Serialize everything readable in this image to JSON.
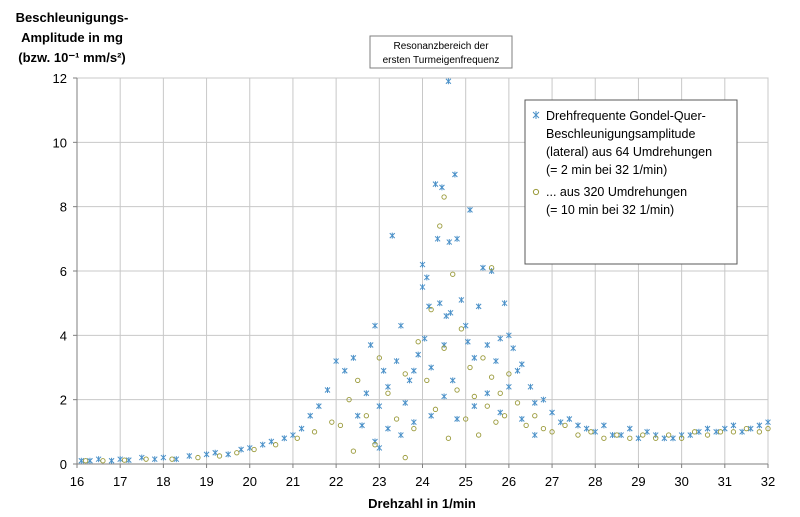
{
  "chart_data": {
    "type": "scatter",
    "ylabel_lines": [
      "Beschleunigungs-",
      "Amplitude in mg",
      "(bzw.  10⁻¹ mm/s²)"
    ],
    "xlabel": "Drehzahl in 1/min",
    "xlim": [
      16,
      32
    ],
    "ylim": [
      0,
      12
    ],
    "x_ticks": [
      "16",
      "17",
      "18",
      "19",
      "20",
      "21",
      "22",
      "23",
      "24",
      "25",
      "26",
      "27",
      "28",
      "29",
      "30",
      "31",
      "32"
    ],
    "y_ticks": [
      "0",
      "2",
      "4",
      "6",
      "8",
      "10",
      "12"
    ],
    "grid": true,
    "annotation_lines": [
      "Resonanzbereich der",
      "ersten Turmeigenfrequenz"
    ],
    "legend_position": "top-right",
    "series": [
      {
        "name": "Drehfrequente Gondel-Quer-Beschleunigungsamplitude (lateral) aus 64 Umdrehungen (= 2 min bei 32 1/min)",
        "name_lines": [
          "Drehfrequente Gondel-Quer-",
          "Beschleunigungsamplitude",
          "(lateral) aus 64 Umdrehungen",
          "(= 2 min bei 32 1/min)"
        ],
        "marker": "asterisk",
        "color": "#4a90c8",
        "points": [
          [
            16.1,
            0.1
          ],
          [
            16.3,
            0.1
          ],
          [
            16.5,
            0.15
          ],
          [
            16.8,
            0.1
          ],
          [
            17.0,
            0.15
          ],
          [
            17.2,
            0.12
          ],
          [
            17.5,
            0.2
          ],
          [
            17.8,
            0.15
          ],
          [
            18.0,
            0.2
          ],
          [
            18.3,
            0.15
          ],
          [
            18.6,
            0.25
          ],
          [
            19.0,
            0.3
          ],
          [
            19.2,
            0.35
          ],
          [
            19.5,
            0.3
          ],
          [
            19.8,
            0.45
          ],
          [
            20.0,
            0.5
          ],
          [
            20.3,
            0.6
          ],
          [
            20.5,
            0.7
          ],
          [
            20.8,
            0.8
          ],
          [
            21.0,
            0.9
          ],
          [
            21.2,
            1.1
          ],
          [
            21.4,
            1.5
          ],
          [
            21.6,
            1.8
          ],
          [
            21.8,
            2.3
          ],
          [
            22.0,
            3.2
          ],
          [
            22.2,
            2.9
          ],
          [
            22.4,
            3.3
          ],
          [
            22.5,
            1.5
          ],
          [
            22.7,
            2.2
          ],
          [
            22.8,
            3.7
          ],
          [
            22.9,
            4.3
          ],
          [
            23.0,
            1.8
          ],
          [
            23.1,
            2.9
          ],
          [
            23.2,
            2.4
          ],
          [
            23.3,
            7.1
          ],
          [
            23.4,
            3.2
          ],
          [
            23.5,
            4.3
          ],
          [
            23.6,
            1.9
          ],
          [
            23.7,
            2.6
          ],
          [
            23.8,
            2.9
          ],
          [
            23.9,
            3.4
          ],
          [
            24.0,
            6.2
          ],
          [
            24.0,
            5.5
          ],
          [
            24.05,
            3.9
          ],
          [
            24.1,
            5.8
          ],
          [
            24.15,
            4.9
          ],
          [
            24.2,
            3.0
          ],
          [
            24.3,
            8.7
          ],
          [
            24.35,
            7.0
          ],
          [
            24.4,
            5.0
          ],
          [
            24.45,
            8.6
          ],
          [
            24.5,
            3.7
          ],
          [
            24.55,
            4.6
          ],
          [
            24.6,
            11.9
          ],
          [
            24.62,
            6.9
          ],
          [
            24.65,
            4.7
          ],
          [
            24.7,
            2.6
          ],
          [
            24.75,
            9.0
          ],
          [
            24.8,
            7.0
          ],
          [
            24.9,
            5.1
          ],
          [
            25.0,
            4.3
          ],
          [
            25.05,
            3.8
          ],
          [
            25.1,
            7.9
          ],
          [
            25.2,
            3.3
          ],
          [
            25.3,
            4.9
          ],
          [
            25.4,
            6.1
          ],
          [
            25.5,
            3.7
          ],
          [
            25.6,
            6.0
          ],
          [
            25.7,
            3.2
          ],
          [
            25.8,
            3.9
          ],
          [
            25.9,
            5.0
          ],
          [
            26.0,
            4.0
          ],
          [
            26.1,
            3.6
          ],
          [
            26.2,
            2.9
          ],
          [
            26.3,
            3.1
          ],
          [
            26.5,
            2.4
          ],
          [
            26.6,
            1.9
          ],
          [
            26.8,
            2.0
          ],
          [
            27.0,
            1.6
          ],
          [
            27.2,
            1.3
          ],
          [
            27.4,
            1.4
          ],
          [
            27.6,
            1.2
          ],
          [
            27.8,
            1.1
          ],
          [
            28.0,
            1.0
          ],
          [
            28.2,
            1.2
          ],
          [
            28.4,
            0.9
          ],
          [
            28.6,
            0.9
          ],
          [
            28.8,
            1.1
          ],
          [
            29.0,
            0.8
          ],
          [
            29.2,
            1.0
          ],
          [
            29.4,
            0.9
          ],
          [
            29.6,
            0.8
          ],
          [
            29.8,
            0.8
          ],
          [
            30.0,
            0.9
          ],
          [
            30.2,
            0.9
          ],
          [
            30.4,
            1.0
          ],
          [
            30.6,
            1.1
          ],
          [
            30.8,
            1.0
          ],
          [
            31.0,
            1.1
          ],
          [
            31.2,
            1.2
          ],
          [
            31.4,
            1.0
          ],
          [
            31.6,
            1.1
          ],
          [
            31.8,
            1.2
          ],
          [
            32.0,
            1.3
          ],
          [
            23.2,
            1.1
          ],
          [
            23.5,
            0.9
          ],
          [
            23.8,
            1.3
          ],
          [
            24.2,
            1.5
          ],
          [
            24.5,
            2.1
          ],
          [
            24.8,
            1.4
          ],
          [
            25.2,
            1.8
          ],
          [
            25.5,
            2.2
          ],
          [
            25.8,
            1.6
          ],
          [
            26.0,
            2.4
          ],
          [
            26.3,
            1.4
          ],
          [
            26.6,
            0.9
          ],
          [
            22.6,
            1.2
          ],
          [
            22.9,
            0.7
          ],
          [
            23.0,
            0.5
          ]
        ]
      },
      {
        "name": "... aus 320 Umdrehungen (= 10 min bei 32 1/min)",
        "name_lines": [
          "... aus 320 Umdrehungen",
          "(= 10 min bei 32 1/min)"
        ],
        "marker": "circle",
        "color": "#9a9a3a",
        "points": [
          [
            16.2,
            0.1
          ],
          [
            16.6,
            0.1
          ],
          [
            17.1,
            0.12
          ],
          [
            17.6,
            0.15
          ],
          [
            18.2,
            0.15
          ],
          [
            18.8,
            0.2
          ],
          [
            19.3,
            0.25
          ],
          [
            19.7,
            0.35
          ],
          [
            20.1,
            0.45
          ],
          [
            20.6,
            0.6
          ],
          [
            21.1,
            0.8
          ],
          [
            21.5,
            1.0
          ],
          [
            21.9,
            1.3
          ],
          [
            22.1,
            1.2
          ],
          [
            22.3,
            2.0
          ],
          [
            22.5,
            2.6
          ],
          [
            22.7,
            1.5
          ],
          [
            22.9,
            0.6
          ],
          [
            23.0,
            3.3
          ],
          [
            23.2,
            2.2
          ],
          [
            23.4,
            1.4
          ],
          [
            23.6,
            2.8
          ],
          [
            23.8,
            1.1
          ],
          [
            23.9,
            3.8
          ],
          [
            24.1,
            2.6
          ],
          [
            24.2,
            4.8
          ],
          [
            24.3,
            1.7
          ],
          [
            24.4,
            7.4
          ],
          [
            24.5,
            3.6
          ],
          [
            24.6,
            0.8
          ],
          [
            24.7,
            5.9
          ],
          [
            24.8,
            2.3
          ],
          [
            24.9,
            4.2
          ],
          [
            25.0,
            1.4
          ],
          [
            25.1,
            3.0
          ],
          [
            25.2,
            2.1
          ],
          [
            25.3,
            0.9
          ],
          [
            25.4,
            3.3
          ],
          [
            25.5,
            1.8
          ],
          [
            25.6,
            2.7
          ],
          [
            25.7,
            1.3
          ],
          [
            25.8,
            2.2
          ],
          [
            25.9,
            1.5
          ],
          [
            26.0,
            2.8
          ],
          [
            26.2,
            1.9
          ],
          [
            26.4,
            1.2
          ],
          [
            26.6,
            1.5
          ],
          [
            26.8,
            1.1
          ],
          [
            27.0,
            1.0
          ],
          [
            27.3,
            1.2
          ],
          [
            27.6,
            0.9
          ],
          [
            27.9,
            1.0
          ],
          [
            28.2,
            0.8
          ],
          [
            28.5,
            0.9
          ],
          [
            28.8,
            0.8
          ],
          [
            29.1,
            0.9
          ],
          [
            29.4,
            0.8
          ],
          [
            29.7,
            0.9
          ],
          [
            30.0,
            0.8
          ],
          [
            30.3,
            1.0
          ],
          [
            30.6,
            0.9
          ],
          [
            30.9,
            1.0
          ],
          [
            31.2,
            1.0
          ],
          [
            31.5,
            1.1
          ],
          [
            31.8,
            1.0
          ],
          [
            32.0,
            1.1
          ],
          [
            24.5,
            8.3
          ],
          [
            25.6,
            6.1
          ],
          [
            23.6,
            0.2
          ],
          [
            22.4,
            0.4
          ]
        ]
      }
    ]
  }
}
